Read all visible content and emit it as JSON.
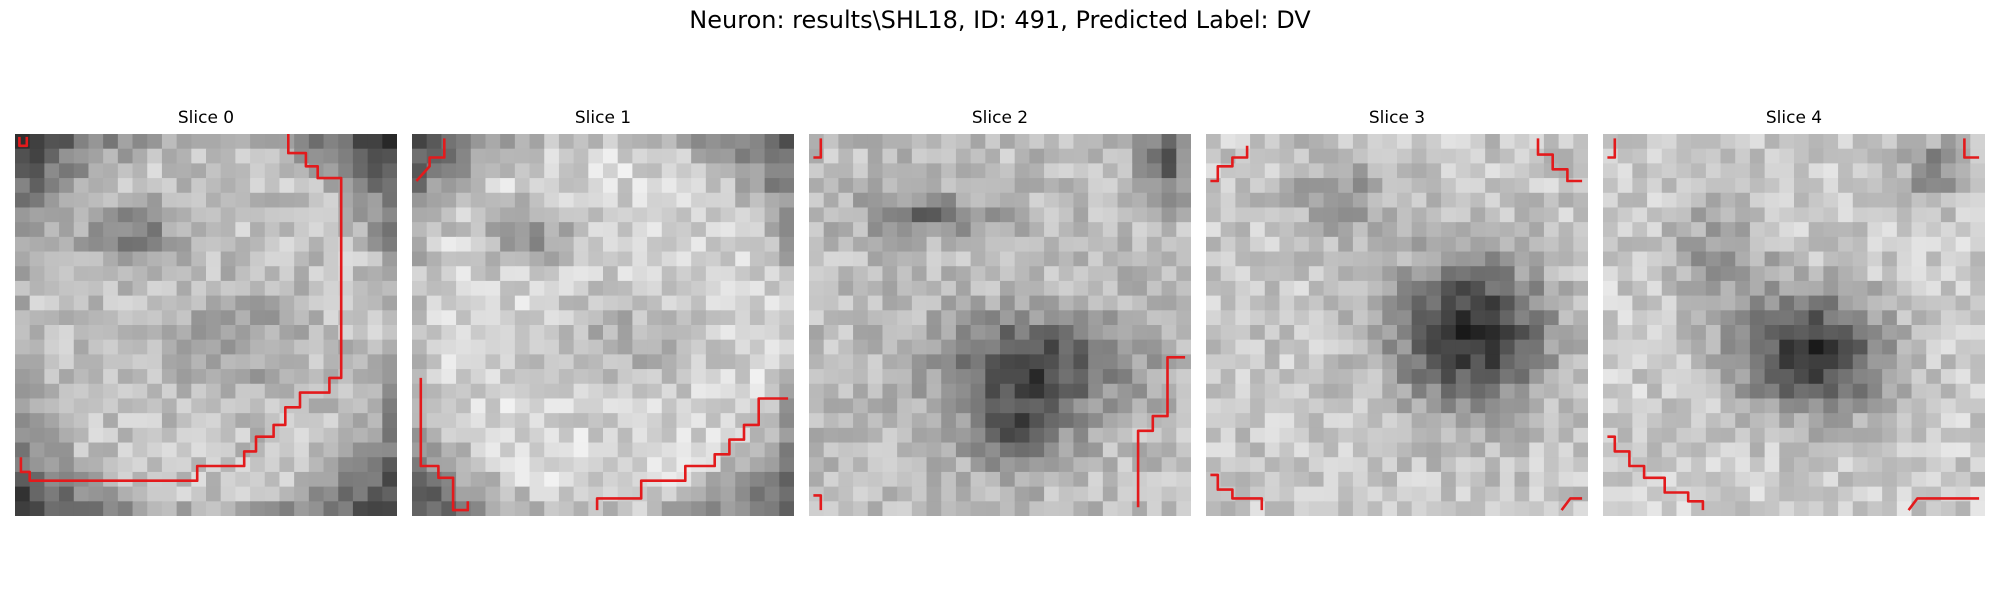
{
  "figure": {
    "title": "Neuron: results\\SHL18, ID: 491, Predicted Label: DV",
    "contour_color": "#e31a1c",
    "colormap": "gray",
    "grid": 26
  },
  "slices": [
    {
      "title": "Slice 0",
      "mode": "ring",
      "seed": 11
    },
    {
      "title": "Slice 1",
      "mode": "ring_bright",
      "seed": 23
    },
    {
      "title": "Slice 2",
      "mode": "band",
      "seed": 37
    },
    {
      "title": "Slice 3",
      "mode": "blob",
      "seed": 41
    },
    {
      "title": "Slice 4",
      "mode": "blob_low",
      "seed": 53
    }
  ]
}
